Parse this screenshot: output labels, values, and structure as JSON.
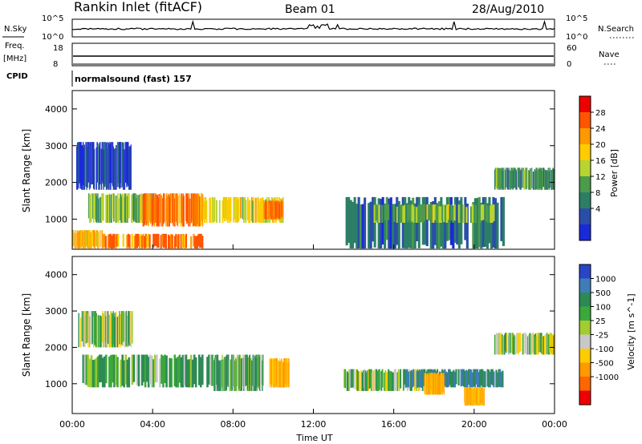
{
  "header": {
    "station": "Rankin Inlet (fitACF)",
    "beam": "Beam 01",
    "date": "28/Aug/2010"
  },
  "noise_panel": {
    "left_label": "N.Sky",
    "right_label": "N.Search",
    "left_ticks": [
      "10^5",
      "10^0"
    ],
    "right_ticks": [
      "10^5",
      "10^0"
    ]
  },
  "freq_panel": {
    "left_label_1": "Freq.",
    "left_label_2": "[MHz]",
    "left_ticks": [
      "18",
      "8"
    ],
    "right_label": "Nave",
    "right_ticks": [
      "60",
      "0"
    ]
  },
  "cpid": {
    "label": "CPID",
    "value": "normalsound (fast) 157"
  },
  "power_panel": {
    "ylabel": "Slant Range [km]",
    "cbar_label": "Power [dB]",
    "cbar_ticks": [
      "28",
      "24",
      "20",
      "16",
      "12",
      "8",
      "4"
    ],
    "cbar_colors": [
      "#ee0000",
      "#ff5500",
      "#ff9900",
      "#ffcc00",
      "#b8d430",
      "#4c9a4c",
      "#2c7f66",
      "#2a4ea8",
      "#1a2ad8"
    ]
  },
  "velocity_panel": {
    "ylabel": "Slant Range [km]",
    "cbar_label": "Velocity [m s^-1]",
    "cbar_ticks": [
      "1000",
      "500",
      "100",
      "25",
      "-25",
      "-100",
      "-500",
      "-1000"
    ],
    "cbar_colors": [
      "#2a44c8",
      "#3f7db8",
      "#2e8a55",
      "#3aa83a",
      "#a2cc30",
      "#c8c8c8",
      "#ffcc00",
      "#ff9900",
      "#ff6600",
      "#ee0000"
    ]
  },
  "xaxis": {
    "label": "Time UT",
    "ticks": [
      "00:00",
      "04:00",
      "08:00",
      "12:00",
      "16:00",
      "20:00",
      "00:00"
    ]
  },
  "chart_data": {
    "type": "heatmap",
    "title": "Rankin Inlet (fitACF)",
    "xlabel": "Time UT",
    "ylabel": "Slant Range [km]",
    "x_ticks": [
      "00:00",
      "04:00",
      "08:00",
      "12:00",
      "16:00",
      "20:00",
      "00:00"
    ],
    "y_ticks": [
      1000,
      2000,
      3000,
      4000
    ],
    "ylim": [
      180,
      4500
    ],
    "power_regions": [
      {
        "t_start": 0.0,
        "t_end": 1.5,
        "r_start": 200,
        "r_end": 700,
        "dB": 24
      },
      {
        "t_start": 1.5,
        "t_end": 6.5,
        "r_start": 200,
        "r_end": 600,
        "dB": 28
      },
      {
        "t_start": 0.8,
        "t_end": 4.0,
        "r_start": 900,
        "r_end": 1700,
        "dB": 16
      },
      {
        "t_start": 3.5,
        "t_end": 6.5,
        "r_start": 800,
        "r_end": 1700,
        "dB": 28
      },
      {
        "t_start": 6.5,
        "t_end": 10.5,
        "r_start": 900,
        "r_end": 1600,
        "dB": 20
      },
      {
        "t_start": 9.5,
        "t_end": 10.5,
        "r_start": 1000,
        "r_end": 1500,
        "dB": 28
      },
      {
        "t_start": 13.5,
        "t_end": 21.5,
        "r_start": 200,
        "r_end": 1600,
        "dB": 8
      },
      {
        "t_start": 15.0,
        "t_end": 21.0,
        "r_start": 900,
        "r_end": 1400,
        "dB": 16
      },
      {
        "t_start": 21.0,
        "t_end": 24.0,
        "r_start": 1800,
        "r_end": 2400,
        "dB": 12
      },
      {
        "t_start": 0.2,
        "t_end": 3.0,
        "r_start": 1800,
        "r_end": 3100,
        "dB": 4
      }
    ],
    "velocity_regions": [
      {
        "t_start": 0.5,
        "t_end": 7.0,
        "r_start": 900,
        "r_end": 1800,
        "v": 100
      },
      {
        "t_start": 7.0,
        "t_end": 9.5,
        "r_start": 800,
        "r_end": 1800,
        "v": 100
      },
      {
        "t_start": 9.8,
        "t_end": 10.8,
        "r_start": 900,
        "r_end": 1700,
        "v": -500
      },
      {
        "t_start": 13.5,
        "t_end": 17.5,
        "r_start": 800,
        "r_end": 1400,
        "v": 0
      },
      {
        "t_start": 16.5,
        "t_end": 21.5,
        "r_start": 900,
        "r_end": 1400,
        "v": 500
      },
      {
        "t_start": 17.5,
        "t_end": 18.5,
        "r_start": 700,
        "r_end": 1300,
        "v": -500
      },
      {
        "t_start": 19.5,
        "t_end": 20.5,
        "r_start": 400,
        "r_end": 900,
        "v": -500
      },
      {
        "t_start": 21.0,
        "t_end": 24.0,
        "r_start": 1800,
        "r_end": 2400,
        "v": 0
      },
      {
        "t_start": 0.3,
        "t_end": 3.0,
        "r_start": 2000,
        "r_end": 3000,
        "v": 0
      }
    ]
  }
}
